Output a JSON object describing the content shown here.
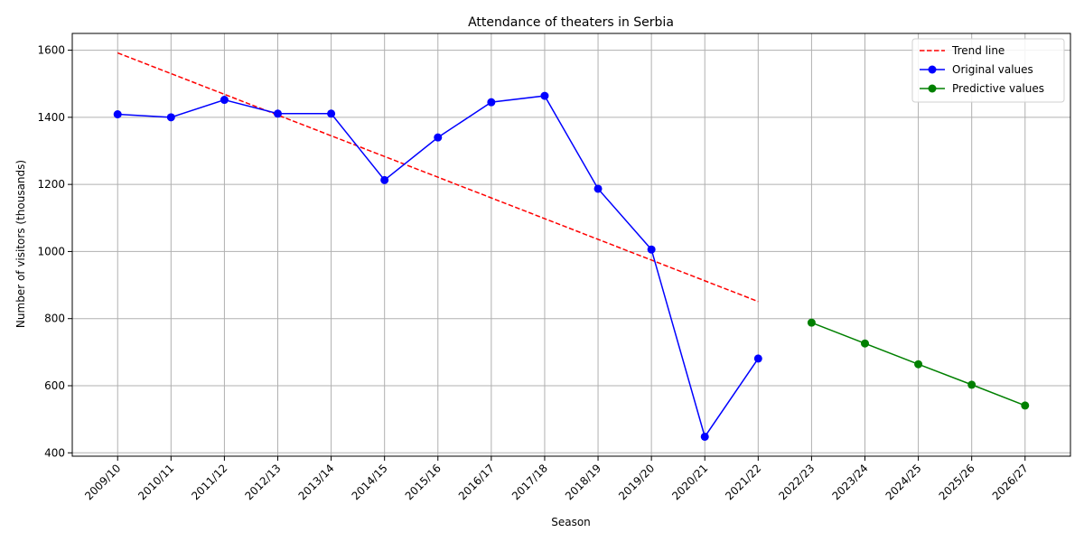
{
  "chart_data": {
    "type": "line",
    "title": "Attendance of theaters in Serbia",
    "xlabel": "Season",
    "ylabel": "Number of visitors (thousands)",
    "categories": [
      "2009/10",
      "2010/11",
      "2011/12",
      "2012/13",
      "2013/14",
      "2014/15",
      "2015/16",
      "2016/17",
      "2017/18",
      "2018/19",
      "2019/20",
      "2020/21",
      "2021/22",
      "2022/23",
      "2023/24",
      "2024/25",
      "2025/26",
      "2026/27"
    ],
    "ylim": [
      390,
      1650
    ],
    "yticks": [
      400,
      600,
      800,
      1000,
      1200,
      1400,
      1600
    ],
    "grid": true,
    "legend_position": "top-right",
    "series": [
      {
        "name": "Trend line",
        "style": "dashed",
        "marker": "none",
        "color": "#ff0000",
        "x": [
          "2009/10",
          "2021/22"
        ],
        "values": [
          1592,
          851
        ]
      },
      {
        "name": "Original values",
        "style": "solid",
        "marker": "circle",
        "color": "#0000ff",
        "x": [
          "2009/10",
          "2010/11",
          "2011/12",
          "2012/13",
          "2013/14",
          "2014/15",
          "2015/16",
          "2016/17",
          "2017/18",
          "2018/19",
          "2019/20",
          "2020/21",
          "2021/22"
        ],
        "values": [
          1409,
          1400,
          1452,
          1411,
          1411,
          1213,
          1340,
          1445,
          1464,
          1187,
          1006,
          448,
          681
        ]
      },
      {
        "name": "Predictive values",
        "style": "solid",
        "marker": "circle",
        "color": "#008000",
        "x": [
          "2022/23",
          "2023/24",
          "2024/25",
          "2025/26",
          "2026/27"
        ],
        "values": [
          788,
          726,
          664,
          603,
          541
        ]
      }
    ]
  }
}
